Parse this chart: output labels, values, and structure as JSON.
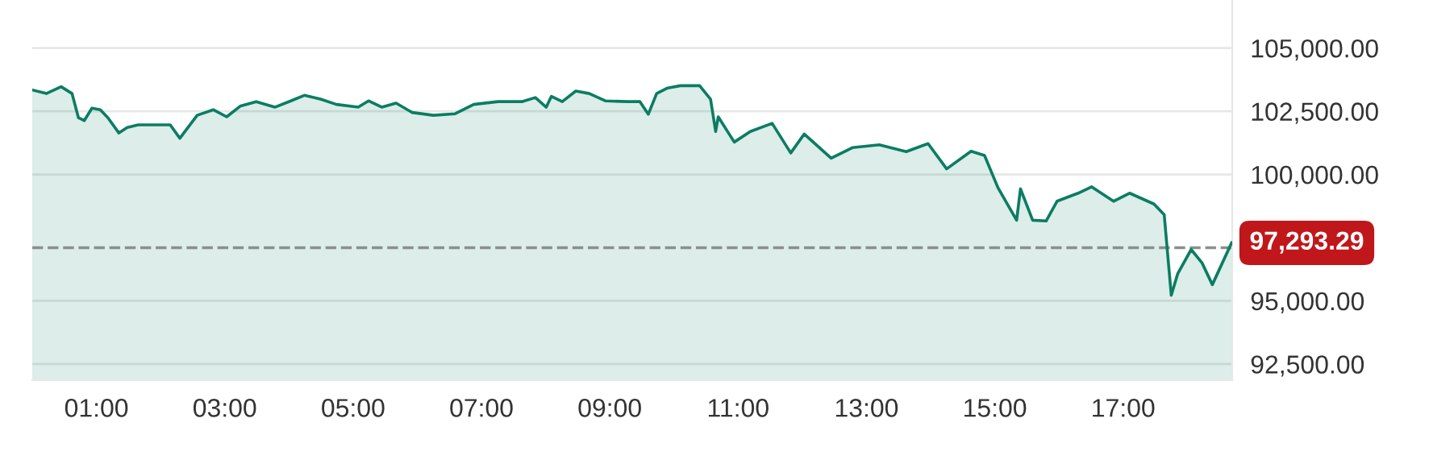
{
  "chart_data": {
    "type": "area",
    "x": [
      0.0,
      0.22,
      0.45,
      0.62,
      0.72,
      0.81,
      0.93,
      1.06,
      1.18,
      1.35,
      1.48,
      1.65,
      2.15,
      2.3,
      2.57,
      2.82,
      3.03,
      3.24,
      3.49,
      3.78,
      4.03,
      4.24,
      4.49,
      4.74,
      5.08,
      5.24,
      5.45,
      5.67,
      5.92,
      6.25,
      6.59,
      6.88,
      7.26,
      7.63,
      7.84,
      8.01,
      8.09,
      8.26,
      8.47,
      8.68,
      8.93,
      9.27,
      9.47,
      9.6,
      9.73,
      9.89,
      10.1,
      10.4,
      10.57,
      10.65,
      10.69,
      10.94,
      11.19,
      11.53,
      11.82,
      12.03,
      12.45,
      12.78,
      13.2,
      13.62,
      13.96,
      14.25,
      14.63,
      14.84,
      15.05,
      15.34,
      15.4,
      15.59,
      15.8,
      15.97,
      16.3,
      16.51,
      16.85,
      17.1,
      17.48,
      17.64,
      17.75,
      17.85,
      18.06,
      18.23,
      18.39,
      18.69
    ],
    "series": [
      {
        "color": "#0b7d62",
        "values": [
          103340,
          103200,
          103470,
          103200,
          102240,
          102130,
          102620,
          102560,
          102240,
          101640,
          101860,
          101960,
          101960,
          101430,
          102340,
          102560,
          102280,
          102700,
          102880,
          102660,
          102910,
          103130,
          102980,
          102770,
          102660,
          102910,
          102660,
          102820,
          102450,
          102340,
          102400,
          102770,
          102880,
          102880,
          103040,
          102660,
          103090,
          102880,
          103300,
          103200,
          102910,
          102880,
          102880,
          102380,
          103200,
          103410,
          103510,
          103510,
          102980,
          101700,
          102280,
          101280,
          101700,
          102020,
          100850,
          101600,
          100640,
          101060,
          101170,
          100900,
          101220,
          100220,
          100920,
          100750,
          99470,
          98190,
          99430,
          98190,
          98160,
          98940,
          99260,
          99510,
          98940,
          99260,
          98830,
          98410,
          95220,
          96070,
          97030,
          96500,
          95640,
          97293.29
        ]
      }
    ],
    "xlim": [
      0,
      18.7
    ],
    "xticks": [
      {
        "value": 1,
        "label": "01:00"
      },
      {
        "value": 3,
        "label": "03:00"
      },
      {
        "value": 5,
        "label": "05:00"
      },
      {
        "value": 7,
        "label": "07:00"
      },
      {
        "value": 9,
        "label": "09:00"
      },
      {
        "value": 11,
        "label": "11:00"
      },
      {
        "value": 13,
        "label": "13:00"
      },
      {
        "value": 15,
        "label": "15:00"
      },
      {
        "value": 17,
        "label": "17:00"
      }
    ],
    "ylim": [
      91860,
      106900
    ],
    "yticks": [
      {
        "value": 92500,
        "label": "92,500.00"
      },
      {
        "value": 95000,
        "label": "95,000.00"
      },
      {
        "value": 100000,
        "label": "100,000.00"
      },
      {
        "value": 102500,
        "label": "102,500.00"
      },
      {
        "value": 105000,
        "label": "105,000.00"
      }
    ],
    "ref_lines": [
      {
        "axis": "y",
        "value": 97100,
        "color": "#8a8f8d",
        "line_style": "dashed"
      }
    ],
    "annotations": [
      {
        "text": "97,293.29",
        "x": 18.69,
        "y": 97293.29
      }
    ],
    "grid": "y",
    "legend": false,
    "marker": "none",
    "line_style": "solid"
  }
}
